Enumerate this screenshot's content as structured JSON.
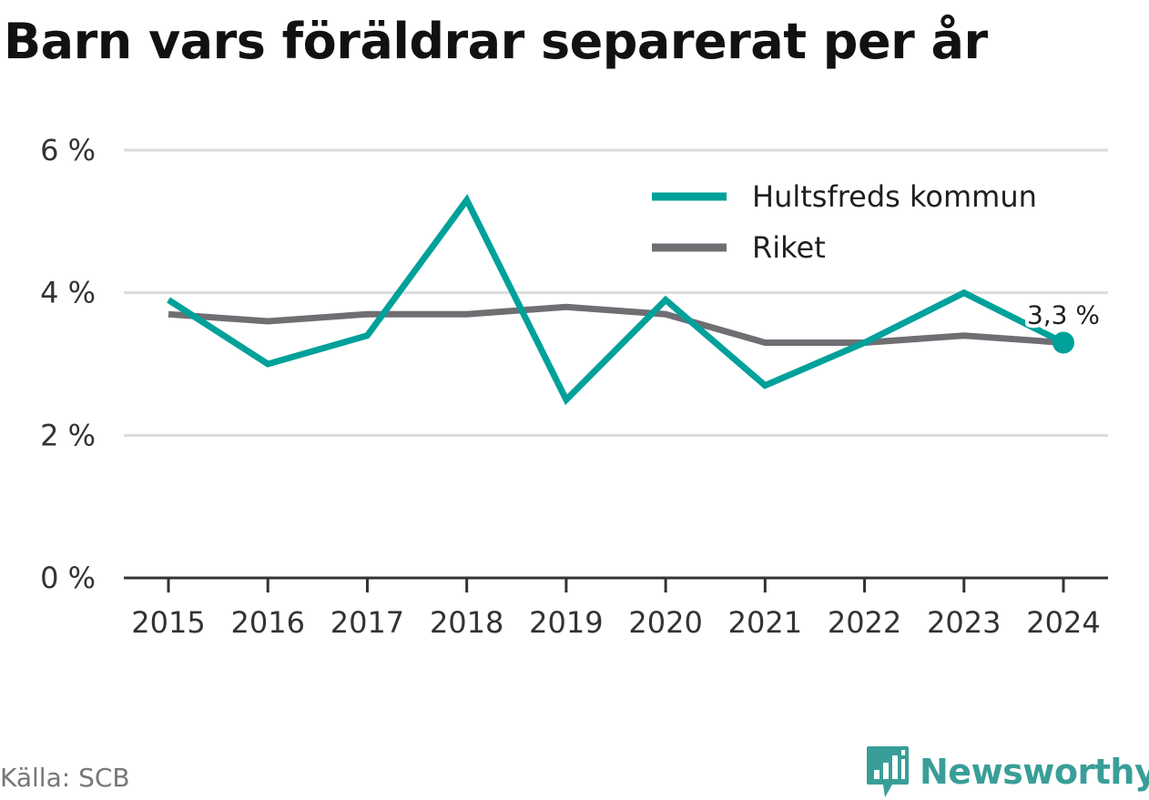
{
  "title": "Barn vars föräldrar separerat per år",
  "source": "Källa: SCB",
  "brand": {
    "name": "Newsworthy",
    "icon": "bar-chart-speech-bubble-icon",
    "color": "#3a9e98"
  },
  "chart_data": {
    "type": "line",
    "title": "Barn vars föräldrar separerat per år",
    "xlabel": "",
    "ylabel": "",
    "categories": [
      "2015",
      "2016",
      "2017",
      "2018",
      "2019",
      "2020",
      "2021",
      "2022",
      "2023",
      "2024"
    ],
    "series": [
      {
        "name": "Hultsfreds kommun",
        "color": "#00a19a",
        "values": [
          3.9,
          3.0,
          3.4,
          5.3,
          2.5,
          3.9,
          2.7,
          3.3,
          4.0,
          3.3
        ]
      },
      {
        "name": "Riket",
        "color": "#6f6e73",
        "values": [
          3.7,
          3.6,
          3.7,
          3.7,
          3.8,
          3.7,
          3.3,
          3.3,
          3.4,
          3.3
        ]
      }
    ],
    "ylim": [
      0,
      6
    ],
    "yticks": [
      0,
      2,
      4,
      6
    ],
    "ytick_labels": [
      "0 %",
      "2 %",
      "4 %",
      "6 %"
    ],
    "grid": true,
    "legend_position": "top-right",
    "annotation": {
      "series": "Hultsfreds kommun",
      "category": "2024",
      "text": "3,3 %"
    }
  }
}
